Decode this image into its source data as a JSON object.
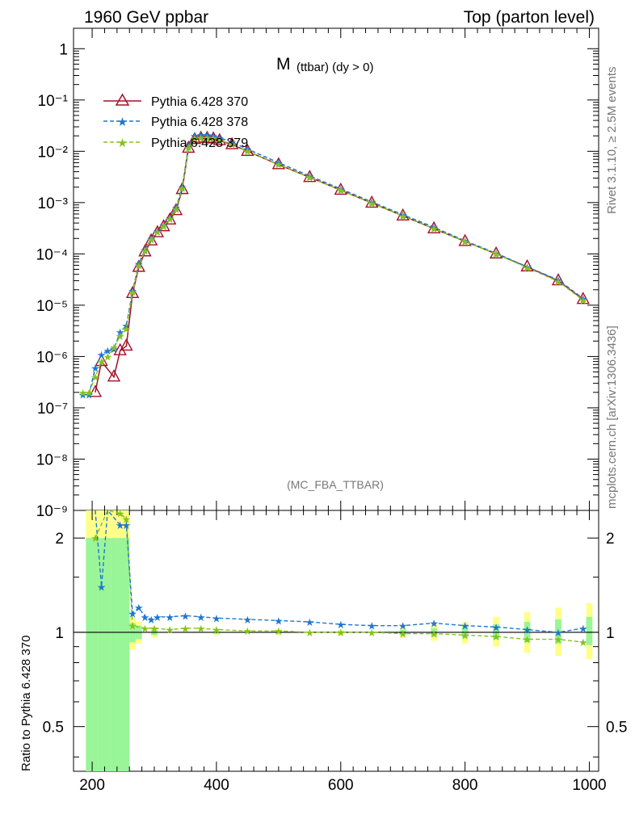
{
  "header": {
    "left": "1960 GeV ppbar",
    "right": "Top (parton level)"
  },
  "plot_title_main": "M",
  "plot_title_sub": "(ttbar) (dy > 0)",
  "watermark": "(MC_FBA_TTBAR)",
  "side_text_top": "Rivet 3.1.10, ≥ 2.5M events",
  "side_text_bottom": "mcplots.cern.ch [arXiv:1306.3436]",
  "ratio_ylabel": "Ratio to Pythia 6.428 370",
  "colors": {
    "s370": "#a50f26",
    "s378": "#1f77d0",
    "s379": "#86c21c",
    "band_green": "#98f598",
    "band_yellow": "#ffff88"
  },
  "chart_data": {
    "type": "line",
    "xlim": [
      170,
      1015
    ],
    "ylim": [
      1e-09,
      2.5
    ],
    "ylog": true,
    "ratio_ylim": [
      0.36,
      2.45
    ],
    "x_ticks": [
      200,
      400,
      600,
      800,
      1000
    ],
    "y_ticks": [
      "10⁻⁹",
      "10⁻⁸",
      "10⁻⁷",
      "10⁻⁶",
      "10⁻⁵",
      "10⁻⁴",
      "10⁻³",
      "10⁻²",
      "10⁻¹",
      "1"
    ],
    "ratio_ticks": [
      "0.5",
      "1",
      "2"
    ],
    "series": [
      {
        "name": "Pythia 6.428 370",
        "points": [
          [
            205,
            2e-07
          ],
          [
            215,
            8e-07
          ],
          [
            235,
            4e-07
          ],
          [
            245,
            1.3e-06
          ],
          [
            255,
            1.6e-06
          ],
          [
            265,
            1.7e-05
          ],
          [
            275,
            5.5e-05
          ],
          [
            285,
            0.00011
          ],
          [
            295,
            0.00018
          ],
          [
            305,
            0.00026
          ],
          [
            315,
            0.00034
          ],
          [
            325,
            0.00046
          ],
          [
            335,
            0.0007
          ],
          [
            345,
            0.0018
          ],
          [
            355,
            0.0115
          ],
          [
            365,
            0.017
          ],
          [
            375,
            0.018
          ],
          [
            385,
            0.018
          ],
          [
            395,
            0.0175
          ],
          [
            405,
            0.0162
          ],
          [
            425,
            0.0135
          ],
          [
            450,
            0.01
          ],
          [
            500,
            0.0055
          ],
          [
            550,
            0.0031
          ],
          [
            600,
            0.00175
          ],
          [
            650,
            0.00098
          ],
          [
            700,
            0.00055
          ],
          [
            750,
            0.00031
          ],
          [
            800,
            0.000175
          ],
          [
            850,
            0.0001
          ],
          [
            900,
            5.6e-05
          ],
          [
            950,
            3e-05
          ],
          [
            990,
            1.3e-05
          ]
        ]
      },
      {
        "name": "Pythia 6.428 378",
        "points": [
          [
            185,
            1.8e-07
          ],
          [
            195,
            1.8e-07
          ],
          [
            205,
            6e-07
          ],
          [
            215,
            1.1e-06
          ],
          [
            225,
            1.3e-06
          ],
          [
            235,
            1.4e-06
          ],
          [
            245,
            3e-06
          ],
          [
            255,
            4e-06
          ],
          [
            265,
            1.9e-05
          ],
          [
            275,
            6.5e-05
          ],
          [
            285,
            0.00012
          ],
          [
            295,
            0.0002
          ],
          [
            305,
            0.00028
          ],
          [
            315,
            0.00036
          ],
          [
            325,
            0.0005
          ],
          [
            335,
            0.0008
          ],
          [
            345,
            0.002
          ],
          [
            355,
            0.013
          ],
          [
            365,
            0.02
          ],
          [
            375,
            0.021
          ],
          [
            385,
            0.021
          ],
          [
            395,
            0.02
          ],
          [
            405,
            0.0185
          ],
          [
            425,
            0.015
          ],
          [
            450,
            0.011
          ],
          [
            500,
            0.006
          ],
          [
            550,
            0.0033
          ],
          [
            600,
            0.00185
          ],
          [
            650,
            0.00103
          ],
          [
            700,
            0.00058
          ],
          [
            750,
            0.00033
          ],
          [
            800,
            0.00018
          ],
          [
            850,
            0.000103
          ],
          [
            900,
            5.6e-05
          ],
          [
            950,
            3.1e-05
          ],
          [
            990,
            1.35e-05
          ]
        ]
      },
      {
        "name": "Pythia 6.428 379",
        "points": [
          [
            185,
            2e-07
          ],
          [
            195,
            2e-07
          ],
          [
            205,
            4e-07
          ],
          [
            215,
            8e-07
          ],
          [
            225,
            1e-06
          ],
          [
            235,
            1.5e-06
          ],
          [
            245,
            2.5e-06
          ],
          [
            255,
            3.5e-06
          ],
          [
            265,
            1.8e-05
          ],
          [
            275,
            6e-05
          ],
          [
            285,
            0.000115
          ],
          [
            295,
            0.00019
          ],
          [
            305,
            0.00027
          ],
          [
            315,
            0.00035
          ],
          [
            325,
            0.00048
          ],
          [
            335,
            0.00075
          ],
          [
            345,
            0.0019
          ],
          [
            355,
            0.012
          ],
          [
            365,
            0.018
          ],
          [
            375,
            0.0185
          ],
          [
            385,
            0.0185
          ],
          [
            395,
            0.018
          ],
          [
            405,
            0.0165
          ],
          [
            425,
            0.0137
          ],
          [
            450,
            0.0101
          ],
          [
            500,
            0.00555
          ],
          [
            550,
            0.0031
          ],
          [
            600,
            0.00175
          ],
          [
            650,
            0.00098
          ],
          [
            700,
            0.00055
          ],
          [
            750,
            0.00031
          ],
          [
            800,
            0.000175
          ],
          [
            850,
            0.0001
          ],
          [
            900,
            5.4e-05
          ],
          [
            950,
            2.9e-05
          ],
          [
            990,
            1.25e-05
          ]
        ]
      }
    ],
    "ratio_378": [
      [
        205,
        3.0
      ],
      [
        215,
        1.4
      ],
      [
        225,
        3.0
      ],
      [
        245,
        2.2
      ],
      [
        255,
        2.2
      ],
      [
        265,
        1.15
      ],
      [
        275,
        1.2
      ],
      [
        285,
        1.12
      ],
      [
        295,
        1.1
      ],
      [
        305,
        1.12
      ],
      [
        325,
        1.12
      ],
      [
        350,
        1.13
      ],
      [
        375,
        1.12
      ],
      [
        400,
        1.11
      ],
      [
        450,
        1.1
      ],
      [
        500,
        1.09
      ],
      [
        550,
        1.08
      ],
      [
        600,
        1.06
      ],
      [
        650,
        1.05
      ],
      [
        700,
        1.05
      ],
      [
        750,
        1.07
      ],
      [
        800,
        1.05
      ],
      [
        850,
        1.04
      ],
      [
        900,
        1.02
      ],
      [
        950,
        1.0
      ],
      [
        990,
        1.03
      ]
    ],
    "ratio_379": [
      [
        205,
        2.0
      ],
      [
        225,
        2.5
      ],
      [
        245,
        2.4
      ],
      [
        255,
        2.3
      ],
      [
        265,
        1.05
      ],
      [
        285,
        1.03
      ],
      [
        300,
        1.03
      ],
      [
        325,
        1.02
      ],
      [
        350,
        1.03
      ],
      [
        375,
        1.03
      ],
      [
        400,
        1.02
      ],
      [
        450,
        1.01
      ],
      [
        500,
        1.01
      ],
      [
        550,
        1.0
      ],
      [
        600,
        1.0
      ],
      [
        650,
        1.0
      ],
      [
        700,
        0.99
      ],
      [
        750,
        0.99
      ],
      [
        800,
        0.98
      ],
      [
        850,
        0.97
      ],
      [
        900,
        0.95
      ],
      [
        950,
        0.95
      ],
      [
        990,
        0.93
      ]
    ],
    "band_yellow": [
      [
        195,
        0.36,
        2.45
      ],
      [
        205,
        0.36,
        2.45
      ],
      [
        215,
        0.36,
        2.45
      ],
      [
        225,
        0.36,
        2.45
      ],
      [
        235,
        0.36,
        2.45
      ],
      [
        245,
        0.36,
        2.45
      ],
      [
        255,
        0.36,
        2.45
      ],
      [
        265,
        0.88,
        1.12
      ],
      [
        275,
        0.92,
        1.08
      ],
      [
        300,
        0.96,
        1.04
      ],
      [
        400,
        0.98,
        1.02
      ],
      [
        500,
        0.98,
        1.02
      ],
      [
        600,
        0.98,
        1.02
      ],
      [
        700,
        0.96,
        1.04
      ],
      [
        750,
        0.94,
        1.06
      ],
      [
        800,
        0.92,
        1.08
      ],
      [
        850,
        0.9,
        1.12
      ],
      [
        900,
        0.86,
        1.16
      ],
      [
        950,
        0.84,
        1.2
      ],
      [
        1000,
        0.82,
        1.24
      ]
    ],
    "band_green": [
      [
        195,
        0.36,
        2.0
      ],
      [
        205,
        0.36,
        2.0
      ],
      [
        215,
        0.36,
        2.0
      ],
      [
        225,
        0.36,
        2.0
      ],
      [
        235,
        0.36,
        2.0
      ],
      [
        245,
        0.36,
        2.0
      ],
      [
        255,
        0.36,
        2.0
      ],
      [
        265,
        0.93,
        1.07
      ],
      [
        275,
        0.95,
        1.05
      ],
      [
        300,
        0.98,
        1.02
      ],
      [
        400,
        0.99,
        1.01
      ],
      [
        500,
        0.99,
        1.01
      ],
      [
        600,
        0.99,
        1.01
      ],
      [
        700,
        0.98,
        1.02
      ],
      [
        750,
        0.97,
        1.03
      ],
      [
        800,
        0.96,
        1.04
      ],
      [
        850,
        0.95,
        1.06
      ],
      [
        900,
        0.93,
        1.08
      ],
      [
        950,
        0.92,
        1.1
      ],
      [
        1000,
        0.91,
        1.12
      ]
    ]
  }
}
